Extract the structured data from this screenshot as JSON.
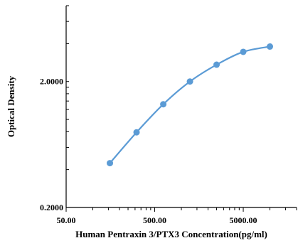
{
  "chart_data": {
    "type": "line",
    "xlabel": "Human Pentraxin 3/PTX3 Concentration(pg/ml)",
    "ylabel": "Optical Density",
    "x_scale": "log",
    "y_scale": "log",
    "xlim": [
      50,
      20000
    ],
    "ylim": [
      0.2,
      8
    ],
    "x_ticks": [
      {
        "value": 50,
        "label": "50.00"
      },
      {
        "value": 500,
        "label": "500.00"
      },
      {
        "value": 5000,
        "label": "5000.00"
      }
    ],
    "y_ticks": [
      {
        "value": 0.2,
        "label": "0.2000"
      },
      {
        "value": 2,
        "label": "2.0000"
      }
    ],
    "legend": "none",
    "grid": false,
    "colors": {
      "series": "#5b9bd5",
      "axis": "#000000"
    },
    "series": [
      {
        "x": [
          156,
          312,
          625,
          1250,
          2500,
          5000,
          10000
        ],
        "y": [
          0.45,
          0.79,
          1.32,
          2.0,
          2.72,
          3.44,
          3.79
        ]
      }
    ]
  }
}
